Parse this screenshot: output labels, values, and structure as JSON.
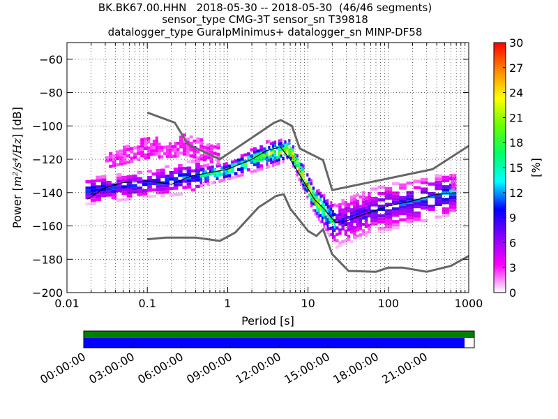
{
  "chart_data": {
    "type": "heatmap",
    "title_lines": [
      "BK.BK67.00.HHN   2018-05-30 -- 2018-05-30  (46/46 segments)",
      "sensor_type CMG-3T sensor_sn T39818",
      "datalogger_type GuralpMinimus+ datalogger_sn MINP-DF58"
    ],
    "xlabel": "Period [s]",
    "ylabel_prefix": "Power [",
    "ylabel_units": "m²/s⁴/Hz",
    "ylabel_suffix": "] [dB]",
    "x_scale": "log",
    "xlim": [
      0.01,
      1000
    ],
    "ylim": [
      -200,
      -50
    ],
    "x_ticks": [
      0.01,
      0.1,
      1,
      10,
      100,
      1000
    ],
    "x_tick_labels": [
      "0.01",
      "0.1",
      "1",
      "10",
      "100",
      "1000"
    ],
    "y_ticks": [
      -200,
      -180,
      -160,
      -140,
      -120,
      -100,
      -80,
      -60
    ],
    "y_tick_labels": [
      "−200",
      "−180",
      "−160",
      "−140",
      "−120",
      "−100",
      "−80",
      "−60"
    ],
    "grid": true,
    "colorbar": {
      "label": "[%]",
      "min": 0,
      "max": 30,
      "ticks": [
        0,
        3,
        6,
        9,
        12,
        15,
        18,
        21,
        24,
        27,
        30
      ],
      "colormap": [
        "#ffffff",
        "#ff00ff",
        "#8800ff",
        "#0000ff",
        "#00ffff",
        "#00ff66",
        "#66ff00",
        "#ffff00",
        "#ff8800",
        "#ff0000"
      ]
    },
    "noise_models": [
      {
        "points": [
          [
            0.1,
            -92
          ],
          [
            0.22,
            -98
          ],
          [
            0.32,
            -111
          ],
          [
            0.8,
            -120
          ],
          [
            3.8,
            -98
          ],
          [
            4.6,
            -96.5
          ],
          [
            6.3,
            -100
          ],
          [
            7.9,
            -113.5
          ],
          [
            15.4,
            -120.5
          ],
          [
            20,
            -138.5
          ],
          [
            354,
            -126
          ],
          [
            1000,
            -112
          ]
        ]
      },
      {
        "points": [
          [
            0.1,
            -168
          ],
          [
            0.17,
            -167
          ],
          [
            0.4,
            -167
          ],
          [
            0.8,
            -169
          ],
          [
            1.24,
            -164
          ],
          [
            2.4,
            -149
          ],
          [
            4.0,
            -142
          ],
          [
            5.0,
            -141
          ],
          [
            6.0,
            -149.5
          ],
          [
            10,
            -163
          ],
          [
            12.7,
            -166
          ],
          [
            15.4,
            -162
          ],
          [
            20,
            -177
          ],
          [
            32,
            -187
          ],
          [
            70,
            -187.5
          ],
          [
            100,
            -185
          ],
          [
            150,
            -185
          ],
          [
            300,
            -187.5
          ],
          [
            600,
            -184
          ],
          [
            1000,
            -178
          ]
        ]
      }
    ],
    "mode_line": [
      [
        0.018,
        -144
      ],
      [
        0.03,
        -137
      ],
      [
        0.05,
        -134
      ],
      [
        0.1,
        -133
      ],
      [
        0.2,
        -135
      ],
      [
        0.35,
        -130
      ],
      [
        0.6,
        -128
      ],
      [
        1,
        -126
      ],
      [
        2,
        -120
      ],
      [
        3,
        -115
      ],
      [
        4.5,
        -112.5
      ],
      [
        6,
        -120
      ],
      [
        8,
        -130
      ],
      [
        12,
        -144
      ],
      [
        16,
        -150
      ],
      [
        22,
        -158
      ],
      [
        30,
        -157
      ],
      [
        50,
        -153
      ],
      [
        100,
        -148
      ],
      [
        200,
        -145
      ],
      [
        400,
        -141
      ],
      [
        700,
        -140
      ]
    ],
    "pdf_bands": [
      {
        "x": [
          0.017,
          0.1
        ],
        "center": [
          -139,
          -134.5
        ],
        "width": [
          8,
          8
        ],
        "pct": [
          10,
          9
        ]
      },
      {
        "x": [
          0.1,
          0.45
        ],
        "center": [
          -134.5,
          -130
        ],
        "width": [
          8,
          10
        ],
        "pct": [
          9,
          11
        ]
      },
      {
        "x": [
          0.45,
          1
        ],
        "center": [
          -130,
          -127
        ],
        "width": [
          6,
          5
        ],
        "pct": [
          15,
          18
        ]
      },
      {
        "x": [
          1,
          3
        ],
        "center": [
          -127,
          -117
        ],
        "width": [
          5,
          8
        ],
        "pct": [
          18,
          18
        ]
      },
      {
        "x": [
          3,
          6
        ],
        "center": [
          -117,
          -114
        ],
        "width": [
          8,
          6
        ],
        "pct": [
          18,
          26
        ]
      },
      {
        "x": [
          6,
          12
        ],
        "center": [
          -114,
          -144
        ],
        "width": [
          6,
          8
        ],
        "pct": [
          26,
          24
        ]
      },
      {
        "x": [
          12,
          22
        ],
        "center": [
          -144,
          -159
        ],
        "width": [
          8,
          12
        ],
        "pct": [
          24,
          14
        ]
      },
      {
        "x": [
          22,
          60
        ],
        "center": [
          -159,
          -151
        ],
        "width": [
          14,
          14
        ],
        "pct": [
          8,
          8
        ]
      },
      {
        "x": [
          60,
          700
        ],
        "center": [
          -151,
          -140
        ],
        "width": [
          14,
          12
        ],
        "pct": [
          8,
          12
        ]
      }
    ],
    "pdf_outliers": [
      {
        "x": [
          0.03,
          0.1
        ],
        "center": [
          -121,
          -113
        ],
        "width": [
          4,
          6
        ],
        "pct": [
          3,
          3
        ]
      },
      {
        "x": [
          0.1,
          0.25
        ],
        "center": [
          -113,
          -113
        ],
        "width": [
          6,
          5
        ],
        "pct": [
          3,
          3
        ]
      },
      {
        "x": [
          0.25,
          0.8
        ],
        "center": [
          -110,
          -117
        ],
        "width": [
          6,
          6
        ],
        "pct": [
          3,
          3
        ]
      },
      {
        "x": [
          600,
          700
        ],
        "center": [
          -134,
          -134
        ],
        "width": [
          4,
          4
        ],
        "pct": [
          3,
          3
        ]
      }
    ]
  },
  "timeline": {
    "tick_labels": [
      "00:00:00",
      "03:00:00",
      "06:00:00",
      "09:00:00",
      "12:00:00",
      "15:00:00",
      "18:00:00",
      "21:00:00"
    ],
    "coverage_fraction": 0.975,
    "colors": {
      "top": "#008000",
      "bottom": "#0000ff"
    }
  }
}
